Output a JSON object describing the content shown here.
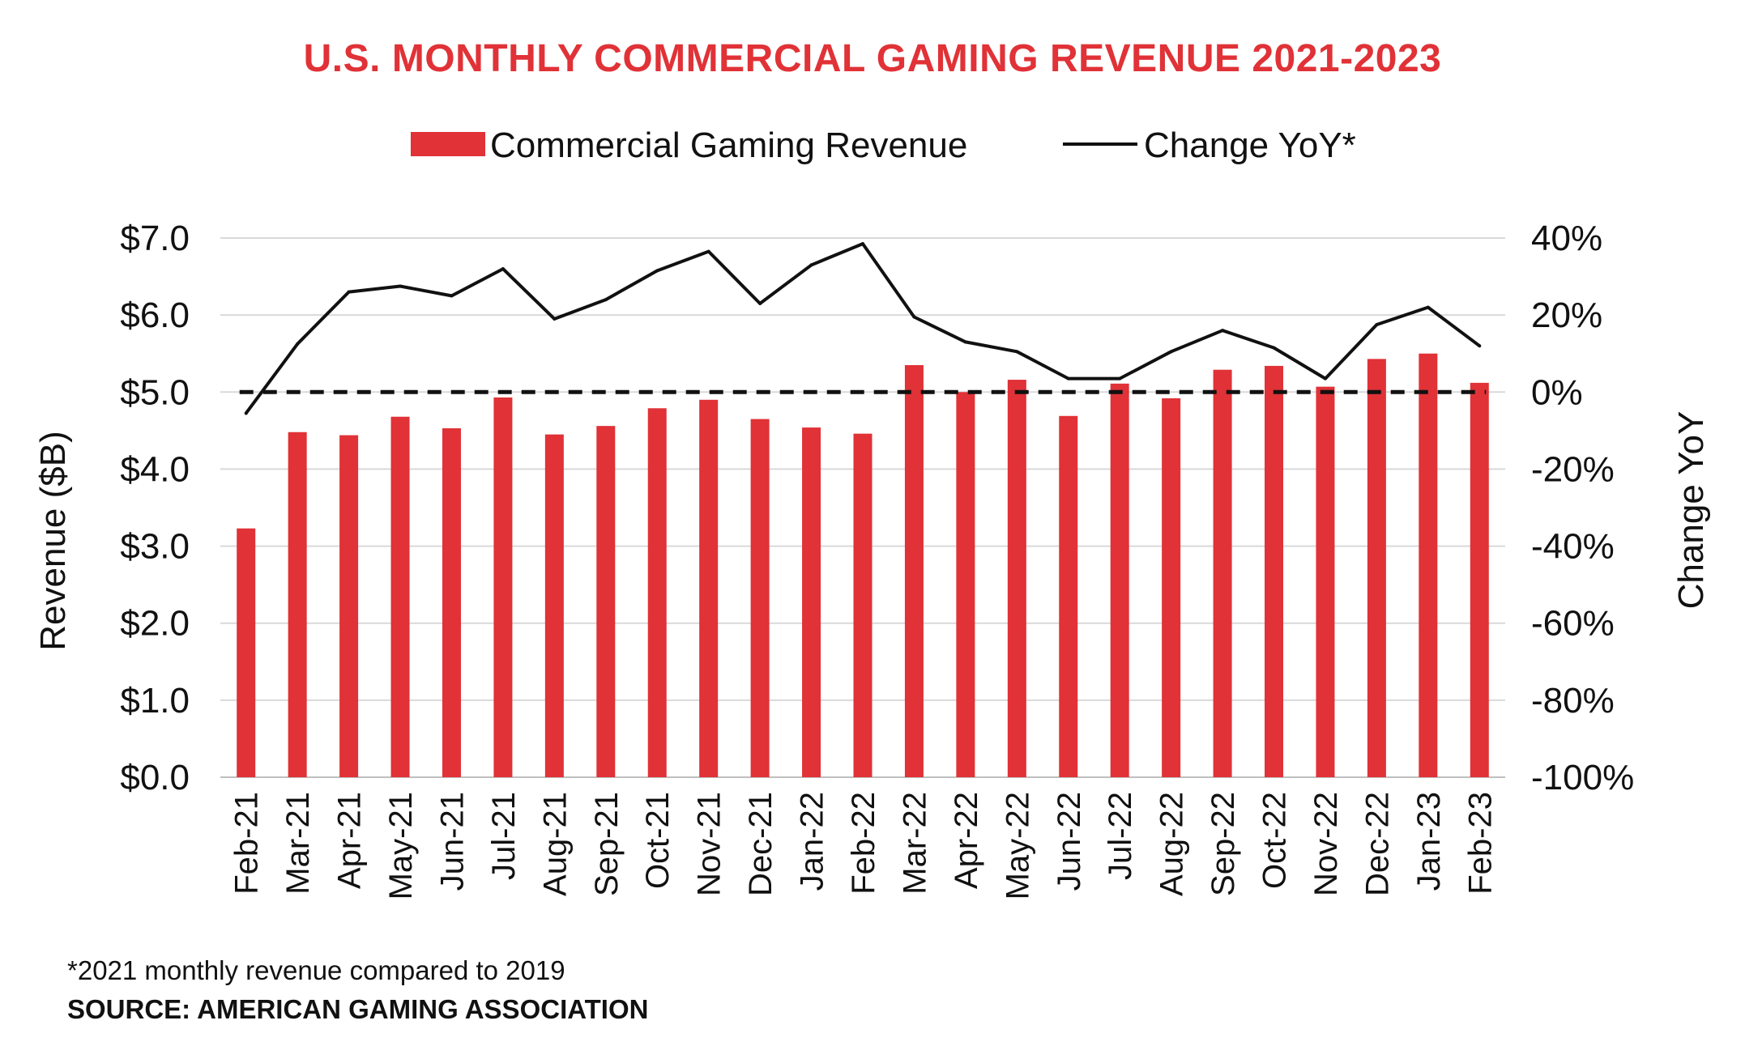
{
  "chart_data": {
    "type": "bar",
    "title": "U.S. MONTHLY COMMERCIAL GAMING REVENUE 2021-2023",
    "categories": [
      "Feb-21",
      "Mar-21",
      "Apr-21",
      "May-21",
      "Jun-21",
      "Jul-21",
      "Aug-21",
      "Sep-21",
      "Oct-21",
      "Nov-21",
      "Dec-21",
      "Jan-22",
      "Feb-22",
      "Mar-22",
      "Apr-22",
      "May-22",
      "Jun-22",
      "Jul-22",
      "Aug-22",
      "Sep-22",
      "Oct-22",
      "Nov-22",
      "Dec-22",
      "Jan-23",
      "Feb-23"
    ],
    "series": [
      {
        "name": "Commercial Gaming Revenue",
        "type": "bar",
        "axis": "left",
        "color": "#e03237",
        "values": [
          3.23,
          4.48,
          4.44,
          4.68,
          4.53,
          4.93,
          4.45,
          4.56,
          4.79,
          4.9,
          4.65,
          4.54,
          4.46,
          5.35,
          5.0,
          5.16,
          4.69,
          5.11,
          4.92,
          5.29,
          5.34,
          5.07,
          5.43,
          5.5,
          5.12
        ]
      },
      {
        "name": "Change YoY*",
        "type": "line",
        "axis": "right",
        "color": "#111111",
        "values": [
          -5.5,
          12.5,
          26,
          27.5,
          25,
          32,
          19,
          24,
          31.5,
          36.5,
          23,
          33,
          38.5,
          19.5,
          13,
          10.5,
          3.5,
          3.5,
          10.5,
          16,
          11.5,
          3.5,
          17.5,
          22,
          12
        ]
      }
    ],
    "baseline": {
      "axis": "right",
      "value": 0,
      "style": "dashed",
      "color": "#111111"
    },
    "ylabel": "Revenue ($B)",
    "ylabel_right": "Change YoY",
    "ylim": [
      0,
      7
    ],
    "ylim_right": [
      -100,
      40
    ],
    "yticks": [
      "$0.0",
      "$1.0",
      "$2.0",
      "$3.0",
      "$4.0",
      "$5.0",
      "$6.0",
      "$7.0"
    ],
    "yticks_right": [
      "-100%",
      "-80%",
      "-60%",
      "-40%",
      "-20%",
      "0%",
      "20%",
      "40%"
    ],
    "grid": true,
    "legend_position": "top-center"
  },
  "footnote": "*2021 monthly revenue compared to 2019",
  "source": "SOURCE: AMERICAN GAMING ASSOCIATION"
}
